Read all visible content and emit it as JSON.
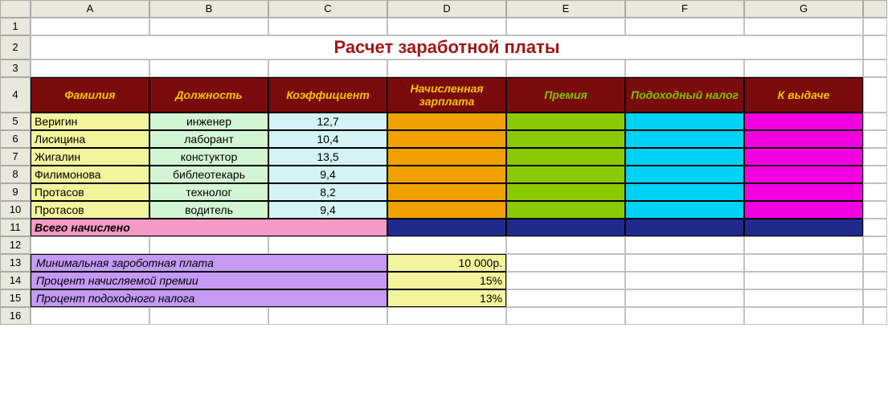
{
  "colors": {
    "title_text": "#a01818",
    "header_bg": "#7a0b0d",
    "header_text_yellow": "#f5c400",
    "header_text_green": "#7cc400",
    "col_surname_bg": "#f3f59d",
    "col_position_bg": "#d4f5d4",
    "col_coef_bg": "#d4f3f5",
    "col_accrued_bg": "#f0a100",
    "col_bonus_bg": "#8cc900",
    "col_tax_bg": "#00d2f5",
    "col_pay_bg": "#f200e0",
    "total_label_bg": "#f59ac4",
    "total_cells_bg": "#1f2a8c",
    "param_label_bg": "#c49af5",
    "param_val_bg": "#f3f59d"
  },
  "title": "Расчет заработной платы",
  "columns": [
    "A",
    "B",
    "C",
    "D",
    "E",
    "F",
    "G"
  ],
  "header": {
    "surname": "Фамилия",
    "position": "Должность",
    "coef": "Коэффициент",
    "accrued": "Начисленная зарплата",
    "bonus": "Премия",
    "tax": "Подоходный налог",
    "pay": "К выдаче"
  },
  "rows": [
    {
      "n": "5",
      "surname": "Веригин",
      "position": "инженер",
      "coef": "12,7"
    },
    {
      "n": "6",
      "surname": "Лисицина",
      "position": "лаборант",
      "coef": "10,4"
    },
    {
      "n": "7",
      "surname": "Жигалин",
      "position": "констуктор",
      "coef": "13,5"
    },
    {
      "n": "8",
      "surname": "Филимонова",
      "position": "библеотекарь",
      "coef": "9,4"
    },
    {
      "n": "9",
      "surname": "Протасов",
      "position": "технолог",
      "coef": "8,2"
    },
    {
      "n": "10",
      "surname": "Протасов",
      "position": "водитель",
      "coef": "9,4"
    }
  ],
  "total_label": "Всего начислено",
  "params": [
    {
      "n": "13",
      "label": "Минимальная зароботная плата",
      "value": "10 000р."
    },
    {
      "n": "14",
      "label": "Процент начисляемой премии",
      "value": "15%"
    },
    {
      "n": "15",
      "label": "Процент подоходного налога",
      "value": "13%"
    }
  ],
  "row_nums": {
    "r1": "1",
    "r2": "2",
    "r3": "3",
    "r4": "4",
    "r11": "11",
    "r12": "12",
    "r16": "16"
  }
}
